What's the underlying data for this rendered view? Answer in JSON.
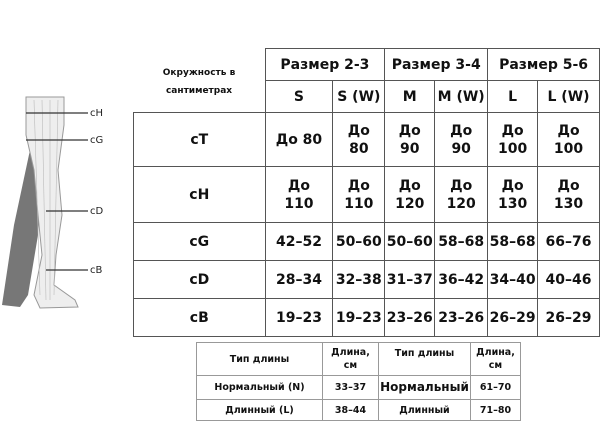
{
  "figure": {
    "labels": [
      "cH",
      "cG",
      "cD",
      "cB"
    ]
  },
  "main_table": {
    "corner_label": "Окружность в сантиметрах",
    "size_groups": [
      "Размер 2-3",
      "Размер 3-4",
      "Размер 5-6"
    ],
    "sizes": [
      "S",
      "S (W)",
      "M",
      "M (W)",
      "L",
      "L (W)"
    ],
    "rows": [
      {
        "label": "cT",
        "values": [
          "До 80",
          "До 80",
          "До 90",
          "До 90",
          "До 100",
          "До 100"
        ]
      },
      {
        "label": "cH",
        "values": [
          "До 110",
          "До 110",
          "До 120",
          "До 120",
          "До 130",
          "До 130"
        ]
      },
      {
        "label": "cG",
        "values": [
          "42–52",
          "50–60",
          "50–60",
          "58–68",
          "58–68",
          "66–76"
        ]
      },
      {
        "label": "cD",
        "values": [
          "28–34",
          "32–38",
          "31–37",
          "36–42",
          "34–40",
          "40–46"
        ]
      },
      {
        "label": "cB",
        "values": [
          "19–23",
          "19–23",
          "23–26",
          "23–26",
          "26–29",
          "26–29"
        ]
      }
    ]
  },
  "length_table": {
    "headers": [
      "Тип длины",
      "Длина, см",
      "Тип длины",
      "Длина, см"
    ],
    "rows": [
      [
        "Нормальный (N)",
        "33–37",
        "Нормальный",
        "61–70"
      ],
      [
        "Длинный (L)",
        "38–44",
        "Длинный",
        "71–80"
      ]
    ]
  }
}
